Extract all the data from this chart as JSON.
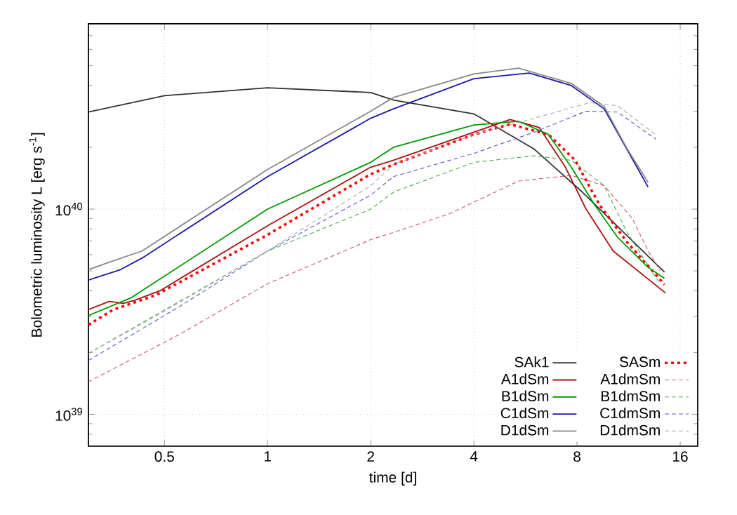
{
  "chart_data": {
    "type": "line",
    "xlabel": "time [d]",
    "ylabel": "Bolometric luminosity L [erg s$^{-1}$]",
    "log": "xy",
    "grid": true,
    "legend": "bottom right",
    "xlim": [
      0.3,
      18
    ],
    "ylim": [
      7e+38,
      8e+40
    ],
    "xticks": [
      0.5,
      1,
      2,
      4,
      8,
      16
    ],
    "yticks": [
      {
        "value": 1e+39,
        "label": "10$^{39}$"
      },
      {
        "value": 1e+40,
        "label": "10$^{40}$"
      }
    ],
    "series": [
      {
        "name": "SAk1",
        "color": "#333333",
        "line_style": "solid",
        "x": [
          0.3,
          0.5,
          1,
          2,
          2.33,
          4,
          6,
          8.2,
          14.4
        ],
        "values": [
          2.97e+40,
          3.57e+40,
          3.9e+40,
          3.7e+40,
          3.4e+40,
          2.91e+40,
          1.96e+40,
          1.23e+40,
          4.93e+39
        ]
      },
      {
        "name": "SASm",
        "color": "#ff0000",
        "line_style": "dotted",
        "x": [
          0.3,
          0.355,
          0.47,
          1,
          2,
          2.33,
          4,
          5.1,
          6.6,
          7.9,
          9.3,
          11.2,
          14.4
        ],
        "values": [
          2.73e+39,
          3.24e+39,
          3.8e+39,
          7.5e+39,
          1.48e+40,
          1.65e+40,
          2.31e+40,
          2.59e+40,
          2.31e+40,
          1.73e+40,
          1.05e+40,
          6.9e+39,
          4.29e+39
        ]
      },
      {
        "name": "A1dSm",
        "color": "#aa1111",
        "line_style": "solid",
        "x": [
          0.3,
          0.345,
          0.38,
          0.41,
          0.485,
          1,
          2,
          2.33,
          4,
          5.1,
          6.2,
          7.4,
          8.5,
          10.2,
          14.5
        ],
        "values": [
          3.24e+39,
          3.55e+39,
          3.47e+39,
          3.6e+39,
          4e+39,
          8.3e+39,
          1.6e+40,
          1.73e+40,
          2.37e+40,
          2.73e+40,
          2.5e+40,
          1.6e+40,
          1e+40,
          6.25e+39,
          3.9e+39
        ]
      },
      {
        "name": "A1dmSm",
        "color": "#cc5566",
        "line_style": "dashed",
        "x": [
          0.3,
          0.55,
          1,
          2,
          2.33,
          3.4,
          5.4,
          7.7,
          9.6,
          11.6,
          12.9,
          14
        ],
        "values": [
          1.44e+39,
          2.44e+39,
          4.33e+39,
          7.1e+39,
          7.7e+39,
          9.5e+39,
          1.37e+40,
          1.46e+40,
          1.3e+40,
          9e+39,
          6.25e+39,
          5e+39
        ]
      },
      {
        "name": "B1dSm",
        "color": "#009900",
        "line_style": "solid",
        "x": [
          0.3,
          0.4,
          1,
          2,
          2.33,
          4,
          5.4,
          6.6,
          7.7,
          9,
          10.5,
          12.9,
          14.4
        ],
        "values": [
          3.03e+39,
          3.7e+39,
          1e+40,
          1.69e+40,
          2e+40,
          2.57e+40,
          2.68e+40,
          2.31e+40,
          1.6e+40,
          1.05e+40,
          7.3e+39,
          5.2e+39,
          4.6e+39
        ]
      },
      {
        "name": "B1dmSm",
        "color": "#44aa44",
        "line_style": "dashed",
        "x": [
          0.3,
          1,
          2,
          2.33,
          4,
          6,
          7.7,
          9.6,
          11.2,
          14
        ],
        "values": [
          1.98e+39,
          6.25e+39,
          1e+40,
          1.21e+40,
          1.69e+40,
          1.82e+40,
          1.73e+40,
          1.3e+40,
          7.7e+39,
          4.3e+39
        ]
      },
      {
        "name": "C1dSm",
        "color": "#1a1aa6",
        "line_style": "solid",
        "x": [
          0.3,
          0.372,
          0.43,
          1,
          2,
          2.33,
          4,
          5.8,
          7.7,
          9.6,
          12.9
        ],
        "values": [
          4.51e+39,
          5.07e+39,
          5.77e+39,
          1.44e+40,
          2.77e+40,
          3.08e+40,
          4.32e+40,
          4.6e+40,
          4e+40,
          3.08e+40,
          1.28e+40
        ]
      },
      {
        "name": "C1dmSm",
        "color": "#5555cc",
        "line_style": "dashed",
        "x": [
          0.3,
          0.55,
          1,
          2,
          2.33,
          4,
          6,
          8.5,
          10.5,
          13.6
        ],
        "values": [
          1.83e+39,
          3.33e+39,
          6.25e+39,
          1.17e+40,
          1.44e+40,
          1.87e+40,
          2.37e+40,
          3e+40,
          2.97e+40,
          2.19e+40
        ]
      },
      {
        "name": "D1dSm",
        "color": "#888888",
        "line_style": "solid",
        "x": [
          0.3,
          0.355,
          0.43,
          1,
          2,
          2.33,
          4,
          5.4,
          7.7,
          9.6,
          11.2,
          12.9
        ],
        "values": [
          5.07e+39,
          5.6e+39,
          6.25e+39,
          1.56e+40,
          3e+40,
          3.5e+40,
          4.56e+40,
          4.86e+40,
          4.1e+40,
          3.16e+40,
          1.97e+40,
          1.35e+40
        ]
      },
      {
        "name": "D1dmSm",
        "color": "#aaaaaa",
        "line_style": "dashed",
        "x": [
          0.3,
          0.47,
          1,
          2,
          2.33,
          4,
          6,
          8.7,
          10.5,
          13.6
        ],
        "values": [
          1.98e+39,
          3e+39,
          6.25e+39,
          1.3e+40,
          1.65e+40,
          2.31e+40,
          2.77e+40,
          3.3e+40,
          3.19e+40,
          2.3e+40
        ]
      }
    ]
  }
}
